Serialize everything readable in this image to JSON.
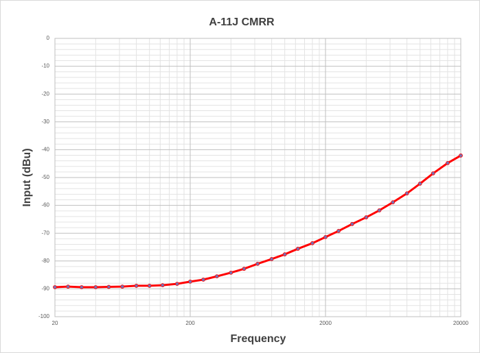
{
  "chart_data": {
    "type": "line",
    "title": "A-11J CMRR",
    "x_label": "Frequency",
    "y_label": "Input (dBu)",
    "x": [
      20,
      25,
      31.5,
      40,
      50,
      63,
      80,
      100,
      125,
      160,
      200,
      250,
      315,
      400,
      500,
      630,
      800,
      1000,
      1250,
      1600,
      2000,
      2500,
      3150,
      4000,
      5000,
      6300,
      8000,
      10000,
      12500,
      16000,
      20000
    ],
    "series": [
      {
        "color": "#ff0000",
        "marker_color": "#7b6fb0",
        "values": [
          -89.4,
          -89.2,
          -89.4,
          -89.4,
          -89.3,
          -89.2,
          -88.9,
          -88.9,
          -88.7,
          -88.2,
          -87.4,
          -86.7,
          -85.5,
          -84.2,
          -82.8,
          -81.0,
          -79.3,
          -77.6,
          -75.6,
          -73.6,
          -71.4,
          -69.2,
          -66.7,
          -64.3,
          -61.8,
          -58.9,
          -55.7,
          -52.2,
          -48.5,
          -44.8,
          -42.1
        ]
      }
    ],
    "xlim": [
      20,
      20000
    ],
    "xticks": [
      20,
      200,
      2000,
      20000
    ],
    "x_log": true,
    "ylim": [
      -100,
      0
    ],
    "yticks": [
      -100,
      -90,
      -80,
      -70,
      -60,
      -50,
      -40,
      -30,
      -20,
      -10,
      0
    ],
    "grid": true,
    "minor_grid": true
  }
}
